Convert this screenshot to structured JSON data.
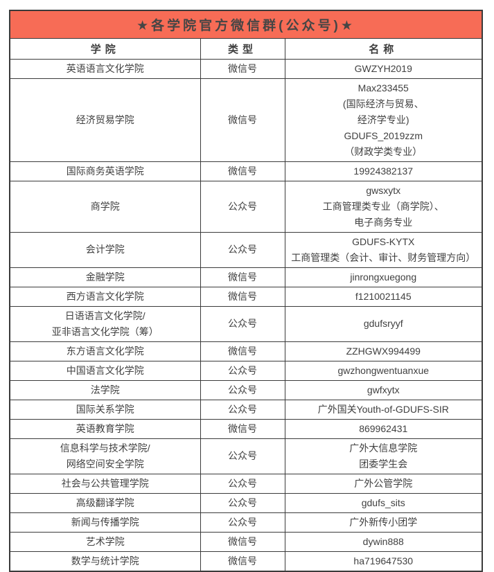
{
  "banner": {
    "title": "★各学院官方微信群(公众号)★",
    "background_color": "#f76c56",
    "text_color": "#454545"
  },
  "table": {
    "border_color": "#3a3a3a",
    "columns": [
      {
        "key": "college",
        "label": "学院"
      },
      {
        "key": "type",
        "label": "类型"
      },
      {
        "key": "name",
        "label": "名称"
      }
    ],
    "rows": [
      {
        "college": "英语语言文化学院",
        "type": "微信号",
        "name": [
          "GWZYH2019"
        ]
      },
      {
        "college": "经济贸易学院",
        "type": "微信号",
        "name": [
          "Max233455",
          "(国际经济与贸易、",
          "经济学专业)",
          "GDUFS_2019zzm",
          "（财政学类专业）"
        ]
      },
      {
        "college": "国际商务英语学院",
        "type": "微信号",
        "name": [
          "19924382137"
        ]
      },
      {
        "college": "商学院",
        "type": "公众号",
        "name": [
          "gwsxytx",
          "工商管理类专业（商学院）、",
          "电子商务专业"
        ]
      },
      {
        "college": "会计学院",
        "type": "公众号",
        "name": [
          "GDUFS-KYTX",
          "工商管理类（会计、审计、财务管理方向）"
        ]
      },
      {
        "college": "金融学院",
        "type": "微信号",
        "name": [
          "jinrongxuegong"
        ]
      },
      {
        "college": "西方语言文化学院",
        "type": "微信号",
        "name": [
          "f1210021145"
        ]
      },
      {
        "college": [
          "日语语言文化学院/",
          "亚非语言文化学院（筹）"
        ],
        "type": "公众号",
        "name": [
          "gdufsryyf"
        ]
      },
      {
        "college": "东方语言文化学院",
        "type": "微信号",
        "name": [
          "ZZHGWX994499"
        ]
      },
      {
        "college": "中国语言文化学院",
        "type": "公众号",
        "name": [
          "gwzhongwentuanxue"
        ]
      },
      {
        "college": "法学院",
        "type": "公众号",
        "name": [
          "gwfxytx"
        ]
      },
      {
        "college": "国际关系学院",
        "type": "公众号",
        "name": [
          "广外国关Youth-of-GDUFS-SIR"
        ]
      },
      {
        "college": "英语教育学院",
        "type": "微信号",
        "name": [
          "869962431"
        ]
      },
      {
        "college": [
          "信息科学与技术学院/",
          "网络空间安全学院"
        ],
        "type": "公众号",
        "name": [
          "广外大信息学院",
          "团委学生会"
        ]
      },
      {
        "college": "社会与公共管理学院",
        "type": "公众号",
        "name": [
          "广外公管学院"
        ]
      },
      {
        "college": "高级翻译学院",
        "type": "公众号",
        "name": [
          "gdufs_sits"
        ]
      },
      {
        "college": "新闻与传播学院",
        "type": "公众号",
        "name": [
          "广外新传小团学"
        ]
      },
      {
        "college": "艺术学院",
        "type": "微信号",
        "name": [
          "dywin888"
        ]
      },
      {
        "college": "数学与统计学院",
        "type": "微信号",
        "name": [
          "ha719647530"
        ]
      }
    ]
  }
}
